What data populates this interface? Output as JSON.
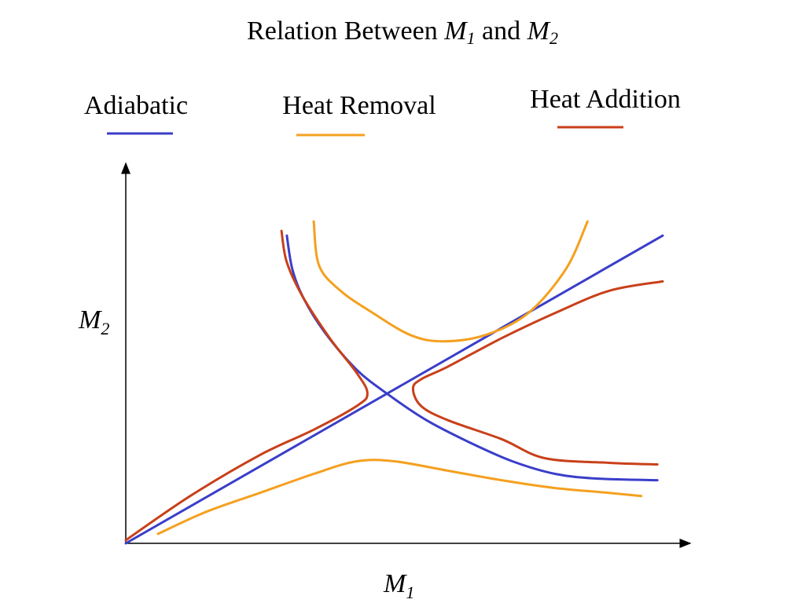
{
  "chart_data": {
    "type": "line",
    "title": {
      "prefix": "Relation Between ",
      "var1": "M",
      "var1_sub": "1",
      "middle": " and ",
      "var2": "M",
      "var2_sub": "2"
    },
    "xlabel": {
      "main": "M",
      "sub": "1"
    },
    "ylabel": {
      "main": "M",
      "sub": "2"
    },
    "xlim": [
      0,
      10
    ],
    "ylim": [
      0,
      10
    ],
    "grid": false,
    "legend_placement": "top",
    "colors": {
      "adiabatic": "#3a3ec9",
      "heat_removal": "#f4a01f",
      "heat_addition": "#c8401a"
    },
    "legend": [
      {
        "key": "adiabatic",
        "label": "Adiabatic"
      },
      {
        "key": "heat_removal",
        "label": "Heat Removal"
      },
      {
        "key": "heat_addition",
        "label": "Heat Addition"
      }
    ],
    "series": [
      {
        "key": "adiabatic",
        "points": [
          [
            0,
            0
          ],
          [
            10,
            9.75
          ]
        ]
      },
      {
        "key": "adiabatic",
        "points": [
          [
            3.0,
            9.75
          ],
          [
            3.1,
            8.7
          ],
          [
            3.3,
            7.8
          ],
          [
            3.7,
            6.7
          ],
          [
            4.3,
            5.5
          ],
          [
            4.9,
            4.7
          ],
          [
            5.6,
            3.9
          ],
          [
            6.4,
            3.2
          ],
          [
            7.2,
            2.6
          ],
          [
            8.0,
            2.2
          ],
          [
            8.8,
            2.05
          ],
          [
            9.9,
            2.0
          ]
        ]
      },
      {
        "key": "heat_removal",
        "points": [
          [
            3.5,
            10.2
          ],
          [
            3.6,
            8.8
          ],
          [
            4.0,
            8.0
          ],
          [
            4.6,
            7.3
          ],
          [
            5.3,
            6.6
          ],
          [
            5.9,
            6.4
          ],
          [
            6.7,
            6.6
          ],
          [
            7.5,
            7.3
          ],
          [
            8.2,
            8.7
          ],
          [
            8.6,
            10.2
          ]
        ]
      },
      {
        "key": "heat_removal",
        "points": [
          [
            0.6,
            0.3
          ],
          [
            1.5,
            1.0
          ],
          [
            2.5,
            1.6
          ],
          [
            3.5,
            2.2
          ],
          [
            4.3,
            2.6
          ],
          [
            5.0,
            2.6
          ],
          [
            6.0,
            2.3
          ],
          [
            7.0,
            2.0
          ],
          [
            8.0,
            1.75
          ],
          [
            9.0,
            1.6
          ],
          [
            9.6,
            1.5
          ]
        ]
      },
      {
        "key": "heat_addition",
        "points": [
          [
            2.9,
            9.9
          ],
          [
            3.0,
            8.9
          ],
          [
            3.3,
            7.8
          ],
          [
            3.8,
            6.5
          ],
          [
            4.3,
            5.4
          ],
          [
            4.5,
            4.75
          ],
          [
            4.3,
            4.35
          ],
          [
            3.5,
            3.6
          ],
          [
            2.5,
            2.8
          ],
          [
            1.2,
            1.5
          ],
          [
            0,
            0.1
          ]
        ]
      },
      {
        "key": "heat_addition",
        "points": [
          [
            10,
            8.3
          ],
          [
            9.0,
            8.0
          ],
          [
            8.0,
            7.3
          ],
          [
            7.0,
            6.5
          ],
          [
            6.0,
            5.6
          ],
          [
            5.5,
            5.2
          ],
          [
            5.35,
            4.9
          ],
          [
            5.5,
            4.35
          ],
          [
            6.0,
            3.9
          ],
          [
            7.0,
            3.3
          ],
          [
            7.8,
            2.7
          ],
          [
            9.0,
            2.55
          ],
          [
            9.9,
            2.5
          ]
        ]
      }
    ]
  }
}
